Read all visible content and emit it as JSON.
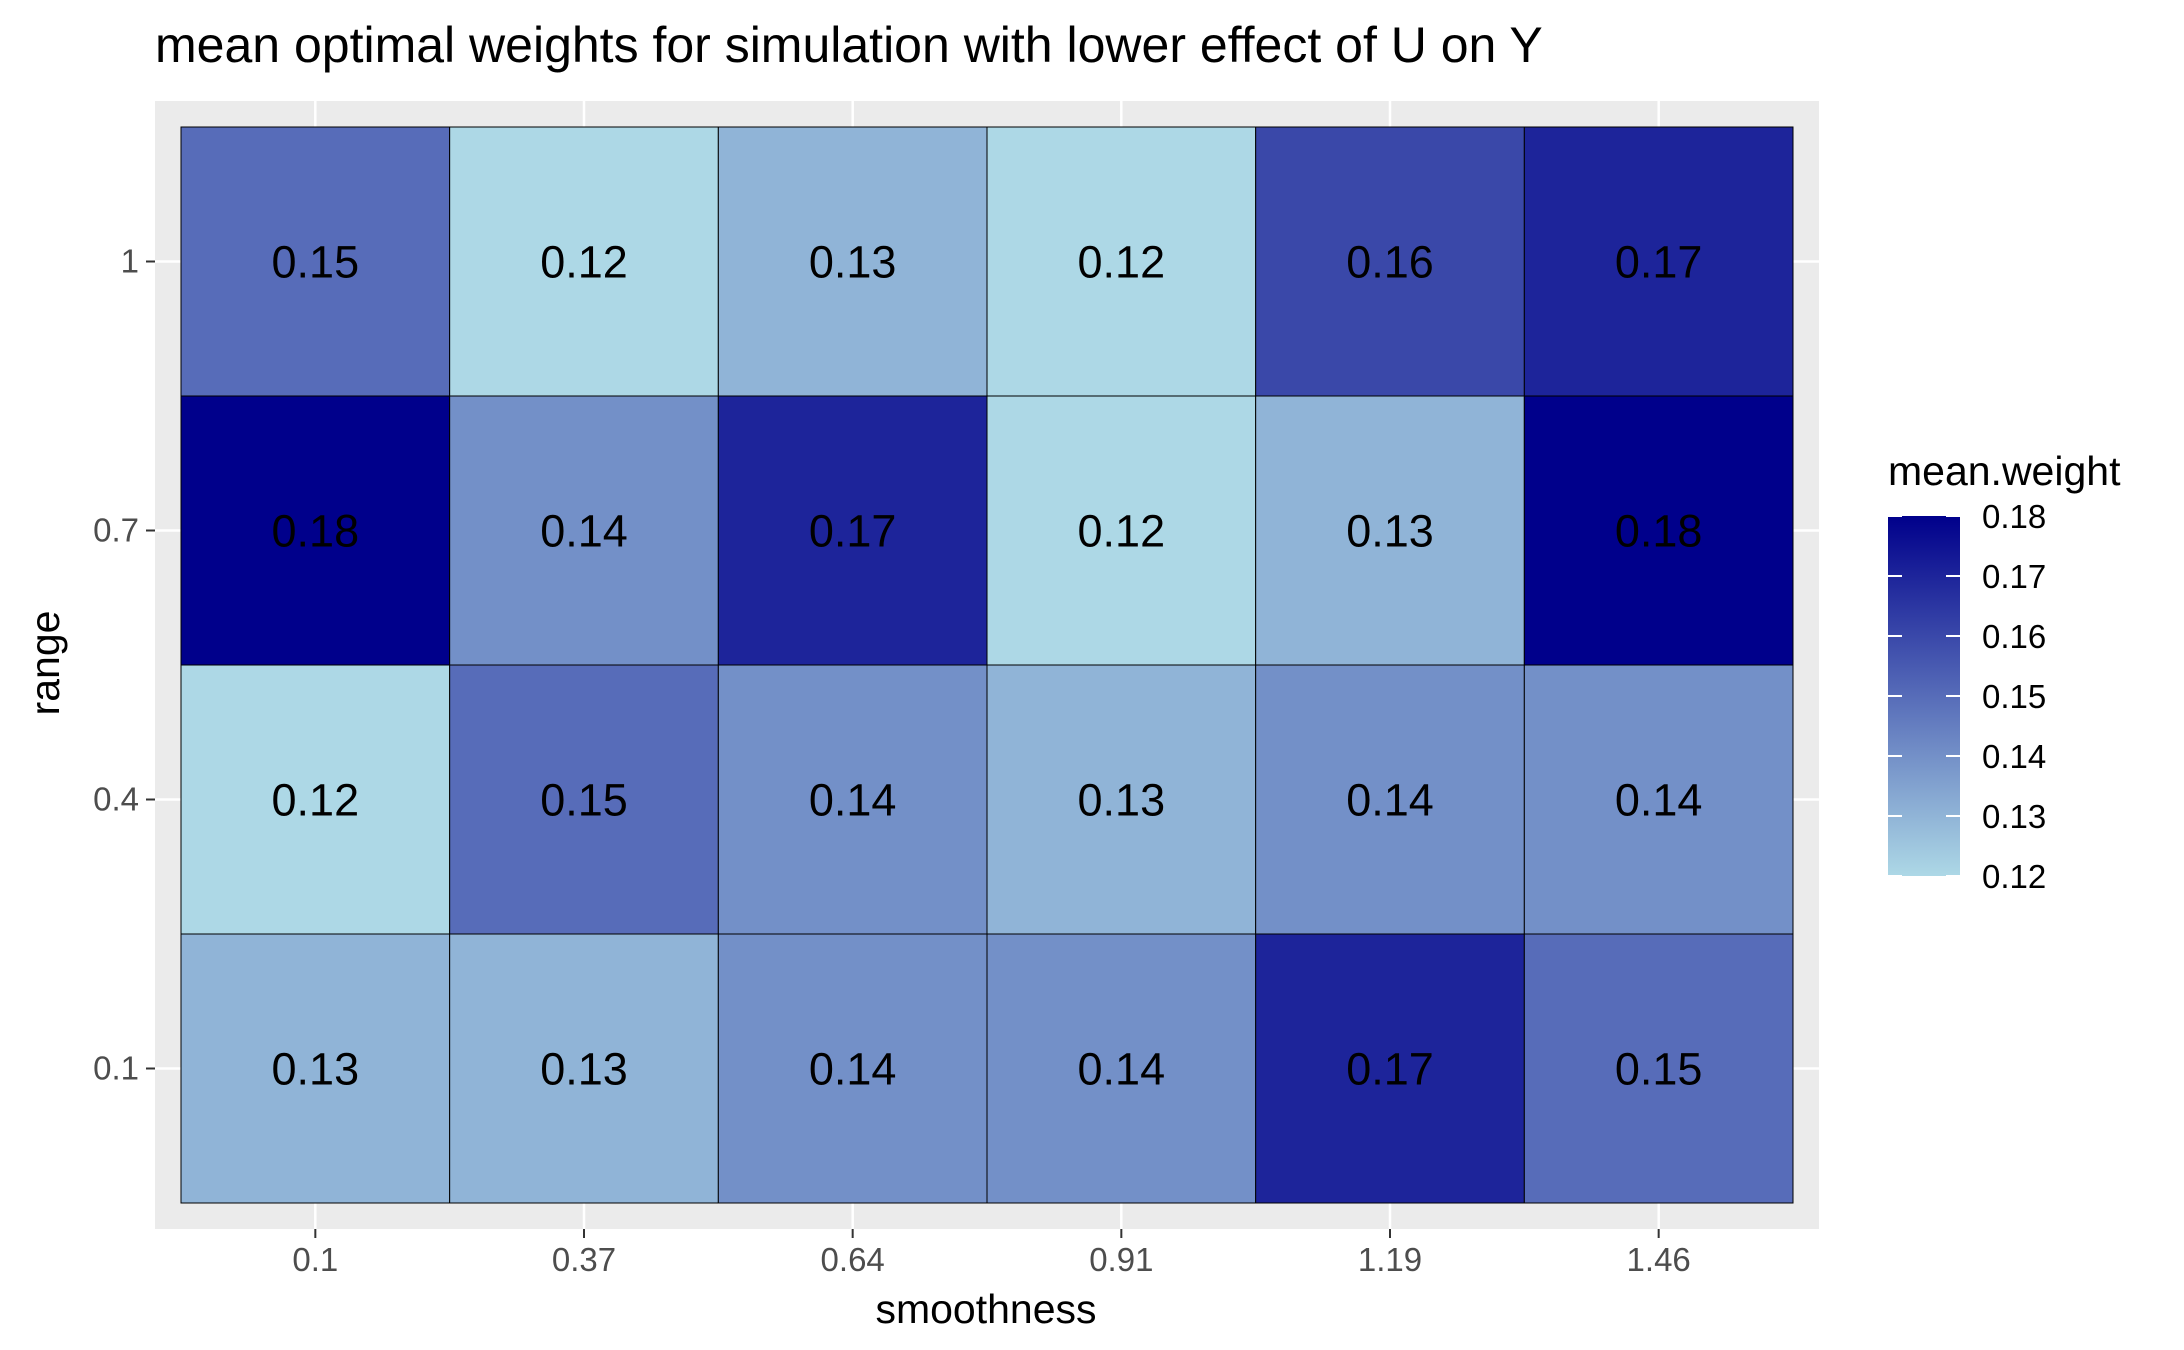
{
  "chart_data": {
    "type": "heatmap",
    "title": "mean optimal weights for simulation with lower effect of U on Y",
    "xlabel": "smoothness",
    "ylabel": "range",
    "x_categories": [
      "0.1",
      "0.37",
      "0.64",
      "0.91",
      "1.19",
      "1.46"
    ],
    "y_categories": [
      "0.1",
      "0.4",
      "0.7",
      "1"
    ],
    "values": [
      [
        0.13,
        0.13,
        0.14,
        0.14,
        0.17,
        0.15
      ],
      [
        0.12,
        0.15,
        0.14,
        0.13,
        0.14,
        0.14
      ],
      [
        0.18,
        0.14,
        0.17,
        0.12,
        0.13,
        0.18
      ],
      [
        0.15,
        0.12,
        0.13,
        0.12,
        0.16,
        0.17
      ]
    ],
    "cell_labels": [
      [
        "0.13",
        "0.13",
        "0.14",
        "0.14",
        "0.17",
        "0.15"
      ],
      [
        "0.12",
        "0.15",
        "0.14",
        "0.13",
        "0.14",
        "0.14"
      ],
      [
        "0.18",
        "0.14",
        "0.17",
        "0.12",
        "0.13",
        "0.18"
      ],
      [
        "0.15",
        "0.12",
        "0.13",
        "0.12",
        "0.16",
        "0.17"
      ]
    ],
    "legend": {
      "title": "mean.weight",
      "position": "right",
      "ticks": [
        "0.18",
        "0.17",
        "0.16",
        "0.15",
        "0.14",
        "0.13",
        "0.12"
      ],
      "tick_values": [
        0.18,
        0.17,
        0.16,
        0.15,
        0.14,
        0.13,
        0.12
      ],
      "range": [
        0.12,
        0.18
      ],
      "low_color": "#add8e6",
      "high_color": "#00008b"
    },
    "grid": true,
    "panel_background": "#ebebeb",
    "grid_color": "#ffffff"
  }
}
